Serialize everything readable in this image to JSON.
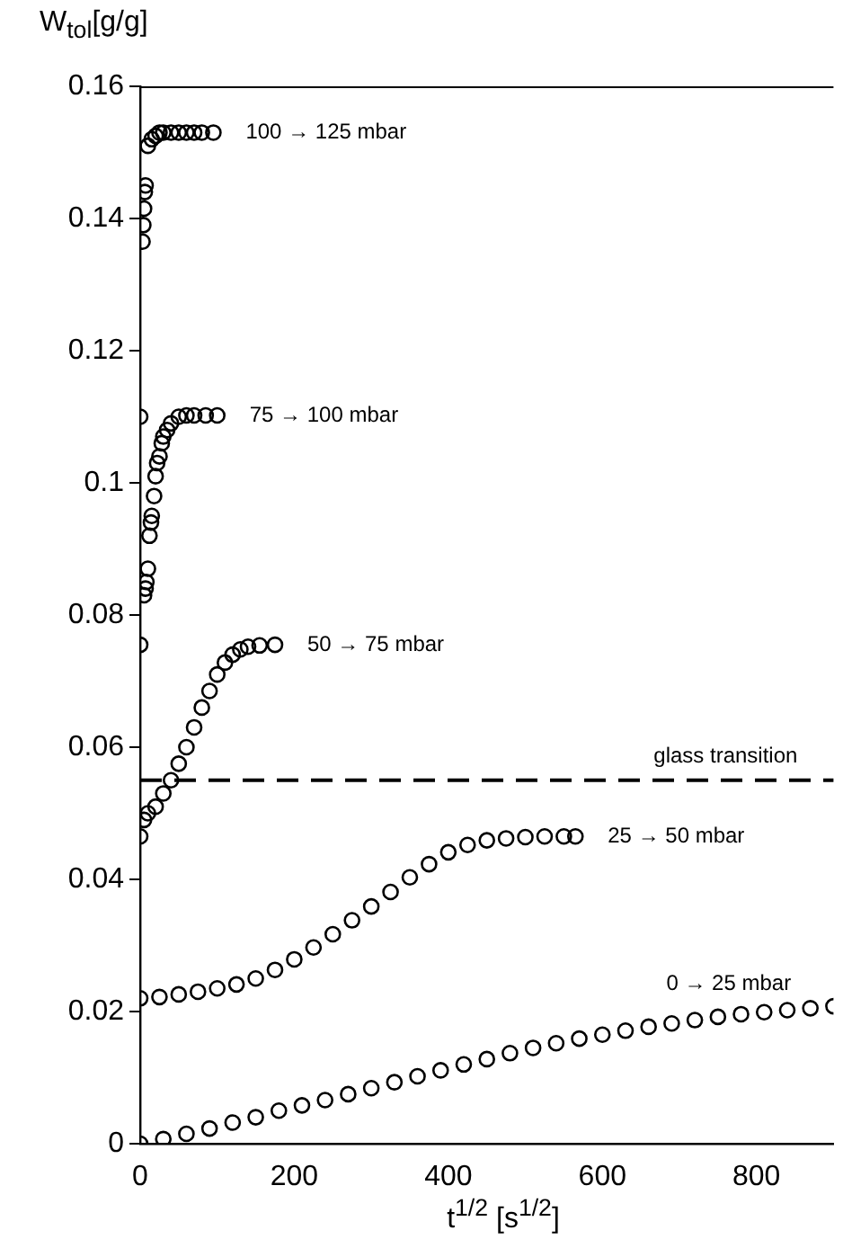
{
  "chart_data": {
    "type": "scatter",
    "xlabel": "t$^{1/2}$ [s$^{1/2}$]",
    "ylabel": "W$_{tol}$[g/g]",
    "xlim": [
      0,
      900
    ],
    "ylim": [
      0,
      0.16
    ],
    "xticks": [
      0,
      200,
      400,
      600,
      800
    ],
    "yticks": [
      0,
      0.02,
      0.04,
      0.06,
      0.08,
      0.1,
      0.12,
      0.14,
      0.16
    ],
    "grid": false,
    "legend": false,
    "marker": "circle",
    "series": [
      {
        "color": "#000000",
        "x": [
          0,
          30,
          60,
          90,
          120,
          150,
          180,
          210,
          240,
          270,
          300,
          330,
          360,
          390,
          420,
          450,
          480,
          510,
          540,
          570,
          600,
          630,
          660,
          690,
          720,
          750,
          780,
          810,
          840,
          870,
          900
        ],
        "values": [
          0,
          0.0007,
          0.0015,
          0.0023,
          0.0032,
          0.004,
          0.005,
          0.0058,
          0.0066,
          0.0075,
          0.0084,
          0.0093,
          0.0102,
          0.0111,
          0.012,
          0.0128,
          0.0137,
          0.0145,
          0.0152,
          0.0159,
          0.0165,
          0.0171,
          0.0177,
          0.0182,
          0.0187,
          0.0192,
          0.0196,
          0.0199,
          0.0202,
          0.0205,
          0.0208
        ]
      },
      {
        "color": "#000000",
        "x": [
          0,
          25,
          50,
          75,
          100,
          125,
          150,
          175,
          200,
          225,
          250,
          275,
          300,
          325,
          350,
          375,
          400,
          425,
          450,
          475,
          500,
          525,
          550,
          565
        ],
        "values": [
          0.022,
          0.0222,
          0.0226,
          0.023,
          0.0235,
          0.0241,
          0.025,
          0.0263,
          0.0279,
          0.0297,
          0.0317,
          0.0338,
          0.0359,
          0.0381,
          0.0403,
          0.0423,
          0.0441,
          0.0452,
          0.0459,
          0.0462,
          0.0464,
          0.0465,
          0.0465,
          0.0465
        ]
      },
      {
        "color": "#000000",
        "x": [
          0,
          0,
          5,
          10,
          20,
          30,
          40,
          50,
          60,
          70,
          80,
          90,
          100,
          110,
          120,
          130,
          140,
          155,
          175
        ],
        "values": [
          0.0755,
          0.0465,
          0.049,
          0.05,
          0.051,
          0.053,
          0.055,
          0.0575,
          0.06,
          0.063,
          0.066,
          0.0685,
          0.071,
          0.0728,
          0.074,
          0.0748,
          0.0752,
          0.0754,
          0.0755
        ]
      },
      {
        "color": "#000000",
        "x": [
          0,
          5,
          7,
          8,
          10,
          12,
          14,
          15,
          18,
          20,
          22,
          25,
          28,
          30,
          35,
          40,
          50,
          60,
          70,
          85,
          100
        ],
        "values": [
          0.11,
          0.083,
          0.084,
          0.085,
          0.087,
          0.092,
          0.094,
          0.095,
          0.098,
          0.101,
          0.103,
          0.104,
          0.106,
          0.107,
          0.108,
          0.109,
          0.11,
          0.1102,
          0.1102,
          0.1102,
          0.1102
        ]
      },
      {
        "color": "#000000",
        "x": [
          3,
          4,
          5,
          6,
          7,
          10,
          15,
          20,
          25,
          30,
          40,
          50,
          60,
          70,
          80,
          95
        ],
        "values": [
          0.1365,
          0.139,
          0.1415,
          0.144,
          0.145,
          0.151,
          0.152,
          0.1525,
          0.153,
          0.153,
          0.153,
          0.153,
          0.153,
          0.153,
          0.153,
          0.153
        ]
      }
    ],
    "ref_lines": [
      {
        "axis": "y",
        "value": 0.055,
        "label": "glass transition",
        "color": "#000000",
        "line_style": "dashed"
      }
    ],
    "annotations": [
      {
        "text": "100 → 125 mbar",
        "x": 95,
        "y": 0.153
      },
      {
        "text": "75 → 100 mbar",
        "x": 100,
        "y": 0.1102
      },
      {
        "text": "50 → 75 mbar",
        "x": 175,
        "y": 0.0755
      },
      {
        "text": "25 → 50 mbar",
        "x": 565,
        "y": 0.0465
      },
      {
        "text": "0 → 25 mbar",
        "x": 690,
        "y": 0.0182
      }
    ]
  }
}
